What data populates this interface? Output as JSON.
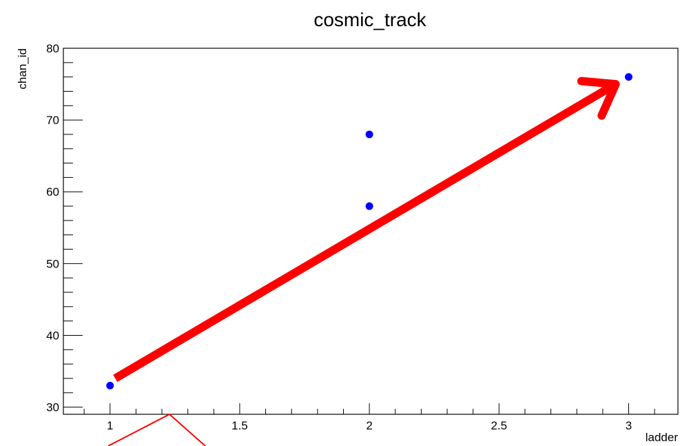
{
  "chart_data": {
    "type": "scatter",
    "title": "cosmic_track",
    "xlabel": "ladder",
    "ylabel": "chan_id",
    "xlim": [
      0.82,
      3.19
    ],
    "ylim": [
      29,
      80
    ],
    "x_ticks": [
      {
        "value": 1,
        "label": "1"
      },
      {
        "value": 1.5,
        "label": "1.5"
      },
      {
        "value": 2,
        "label": "2"
      },
      {
        "value": 2.5,
        "label": "2.5"
      },
      {
        "value": 3,
        "label": "3"
      }
    ],
    "y_ticks": [
      {
        "value": 30,
        "label": "30"
      },
      {
        "value": 40,
        "label": "40"
      },
      {
        "value": 50,
        "label": "50"
      },
      {
        "value": 60,
        "label": "60"
      },
      {
        "value": 70,
        "label": "70"
      },
      {
        "value": 80,
        "label": "80"
      }
    ],
    "points": [
      {
        "x": 1,
        "y": 33
      },
      {
        "x": 2,
        "y": 58
      },
      {
        "x": 2,
        "y": 68
      },
      {
        "x": 3,
        "y": 76
      }
    ],
    "point_color": "#0000ff",
    "grid": false,
    "legend": "none",
    "annotations": [
      {
        "type": "arrow",
        "color": "#ff0000",
        "from": {
          "x": 1.02,
          "y": 34
        },
        "to": {
          "x": 2.95,
          "y": 75
        }
      }
    ]
  }
}
